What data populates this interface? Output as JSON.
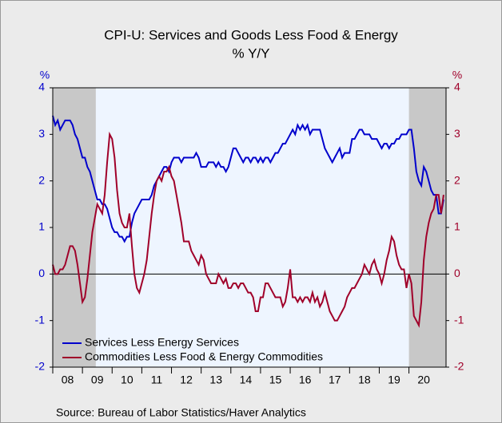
{
  "chart_data": {
    "type": "line",
    "title": "CPI-U: Services and Goods Less Food & Energy",
    "subtitle": "% Y/Y",
    "y_label": "%",
    "y2_label": "%",
    "source": "Source:  Bureau of Labor Statistics/Haver Analytics",
    "xlim": [
      2008,
      2021.25
    ],
    "xticks": [
      {
        "value": 2008,
        "label": "08"
      },
      {
        "value": 2009,
        "label": "09"
      },
      {
        "value": 2010,
        "label": "10"
      },
      {
        "value": 2011,
        "label": "11"
      },
      {
        "value": 2012,
        "label": "12"
      },
      {
        "value": 2013,
        "label": "13"
      },
      {
        "value": 2014,
        "label": "14"
      },
      {
        "value": 2015,
        "label": "15"
      },
      {
        "value": 2016,
        "label": "16"
      },
      {
        "value": 2017,
        "label": "17"
      },
      {
        "value": 2018,
        "label": "18"
      },
      {
        "value": 2019,
        "label": "19"
      },
      {
        "value": 2020,
        "label": "20"
      }
    ],
    "ylim": [
      -2,
      4
    ],
    "yticks": [
      -2,
      -1,
      0,
      1,
      2,
      3,
      4
    ],
    "y2lim": [
      -2,
      4
    ],
    "y2ticks": [
      -2,
      -1,
      0,
      1,
      2,
      3,
      4
    ],
    "recessions": [
      [
        2008,
        2009.45
      ],
      [
        2020,
        2021.25
      ]
    ],
    "x": [
      2008,
      2008.083,
      2008.167,
      2008.25,
      2008.333,
      2008.417,
      2008.5,
      2008.583,
      2008.667,
      2008.75,
      2008.833,
      2008.917,
      2009,
      2009.083,
      2009.167,
      2009.25,
      2009.333,
      2009.417,
      2009.5,
      2009.583,
      2009.667,
      2009.75,
      2009.833,
      2009.917,
      2010,
      2010.083,
      2010.167,
      2010.25,
      2010.333,
      2010.417,
      2010.5,
      2010.583,
      2010.667,
      2010.75,
      2010.833,
      2010.917,
      2011,
      2011.083,
      2011.167,
      2011.25,
      2011.333,
      2011.417,
      2011.5,
      2011.583,
      2011.667,
      2011.75,
      2011.833,
      2011.917,
      2012,
      2012.083,
      2012.167,
      2012.25,
      2012.333,
      2012.417,
      2012.5,
      2012.583,
      2012.667,
      2012.75,
      2012.833,
      2012.917,
      2013,
      2013.083,
      2013.167,
      2013.25,
      2013.333,
      2013.417,
      2013.5,
      2013.583,
      2013.667,
      2013.75,
      2013.833,
      2013.917,
      2014,
      2014.083,
      2014.167,
      2014.25,
      2014.333,
      2014.417,
      2014.5,
      2014.583,
      2014.667,
      2014.75,
      2014.833,
      2014.917,
      2015,
      2015.083,
      2015.167,
      2015.25,
      2015.333,
      2015.417,
      2015.5,
      2015.583,
      2015.667,
      2015.75,
      2015.833,
      2015.917,
      2016,
      2016.083,
      2016.167,
      2016.25,
      2016.333,
      2016.417,
      2016.5,
      2016.583,
      2016.667,
      2016.75,
      2016.833,
      2016.917,
      2017,
      2017.083,
      2017.167,
      2017.25,
      2017.333,
      2017.417,
      2017.5,
      2017.583,
      2017.667,
      2017.75,
      2017.833,
      2017.917,
      2018,
      2018.083,
      2018.167,
      2018.25,
      2018.333,
      2018.417,
      2018.5,
      2018.583,
      2018.667,
      2018.75,
      2018.833,
      2018.917,
      2019,
      2019.083,
      2019.167,
      2019.25,
      2019.333,
      2019.417,
      2019.5,
      2019.583,
      2019.667,
      2019.75,
      2019.833,
      2019.917,
      2020,
      2020.083,
      2020.167,
      2020.25,
      2020.333,
      2020.417,
      2020.5,
      2020.583,
      2020.667,
      2020.75,
      2020.833,
      2020.917,
      2021,
      2021.083,
      2021.167
    ],
    "series": [
      {
        "name": "Services Less Energy Services",
        "color": "#0000cc",
        "axis": "y",
        "values": [
          3.4,
          3.2,
          3.3,
          3.1,
          3.2,
          3.3,
          3.3,
          3.3,
          3.2,
          3.0,
          2.9,
          2.7,
          2.5,
          2.5,
          2.3,
          2.2,
          2.0,
          1.8,
          1.6,
          1.6,
          1.5,
          1.5,
          1.4,
          1.2,
          1.0,
          0.9,
          0.9,
          0.8,
          0.8,
          0.7,
          0.8,
          0.8,
          1.1,
          1.3,
          1.4,
          1.5,
          1.6,
          1.6,
          1.6,
          1.6,
          1.7,
          1.9,
          2.0,
          2.1,
          2.2,
          2.3,
          2.3,
          2.2,
          2.4,
          2.5,
          2.5,
          2.5,
          2.4,
          2.5,
          2.5,
          2.5,
          2.5,
          2.5,
          2.6,
          2.5,
          2.3,
          2.3,
          2.3,
          2.4,
          2.4,
          2.4,
          2.3,
          2.4,
          2.3,
          2.3,
          2.2,
          2.3,
          2.5,
          2.7,
          2.7,
          2.6,
          2.5,
          2.4,
          2.5,
          2.5,
          2.4,
          2.5,
          2.5,
          2.4,
          2.5,
          2.4,
          2.5,
          2.5,
          2.4,
          2.5,
          2.6,
          2.6,
          2.7,
          2.8,
          2.8,
          2.9,
          3.0,
          3.1,
          3.0,
          3.2,
          3.1,
          3.2,
          3.1,
          3.2,
          3.0,
          3.1,
          3.1,
          3.1,
          3.1,
          2.9,
          2.7,
          2.6,
          2.5,
          2.4,
          2.5,
          2.6,
          2.7,
          2.5,
          2.6,
          2.6,
          2.6,
          2.9,
          2.9,
          3.0,
          3.1,
          3.1,
          3.0,
          3.0,
          3.0,
          2.9,
          2.9,
          2.9,
          2.8,
          2.7,
          2.8,
          2.8,
          2.7,
          2.8,
          2.8,
          2.9,
          2.9,
          3.0,
          3.0,
          3.0,
          3.1,
          3.1,
          2.7,
          2.2,
          2.0,
          1.9,
          2.3,
          2.2,
          2.0,
          1.8,
          1.7,
          1.7,
          1.3,
          1.3,
          1.6
        ]
      },
      {
        "name": "Commodities Less Food & Energy Commodities",
        "color": "#a0002a",
        "axis": "y2",
        "values": [
          0.2,
          0.0,
          0.0,
          0.1,
          0.1,
          0.2,
          0.4,
          0.6,
          0.6,
          0.5,
          0.2,
          -0.2,
          -0.6,
          -0.5,
          -0.1,
          0.4,
          0.9,
          1.2,
          1.5,
          1.4,
          1.3,
          1.7,
          2.4,
          3.0,
          2.9,
          2.5,
          1.8,
          1.3,
          1.1,
          1.0,
          1.0,
          1.3,
          0.6,
          0.0,
          -0.3,
          -0.4,
          -0.2,
          0.0,
          0.3,
          0.8,
          1.3,
          1.7,
          2.0,
          2.1,
          2.0,
          2.2,
          2.2,
          2.3,
          2.1,
          2.0,
          1.7,
          1.4,
          1.1,
          0.7,
          0.7,
          0.7,
          0.5,
          0.4,
          0.3,
          0.2,
          0.4,
          0.3,
          0.0,
          -0.1,
          -0.2,
          -0.2,
          -0.2,
          0.0,
          -0.1,
          -0.2,
          -0.1,
          -0.3,
          -0.3,
          -0.2,
          -0.2,
          -0.3,
          -0.2,
          -0.2,
          -0.3,
          -0.4,
          -0.4,
          -0.5,
          -0.8,
          -0.8,
          -0.5,
          -0.5,
          -0.2,
          -0.2,
          -0.3,
          -0.4,
          -0.5,
          -0.5,
          -0.5,
          -0.7,
          -0.6,
          -0.3,
          0.1,
          -0.5,
          -0.5,
          -0.6,
          -0.5,
          -0.6,
          -0.5,
          -0.5,
          -0.6,
          -0.4,
          -0.6,
          -0.5,
          -0.7,
          -0.6,
          -0.4,
          -0.6,
          -0.8,
          -0.9,
          -1.0,
          -1.0,
          -0.9,
          -0.8,
          -0.7,
          -0.5,
          -0.4,
          -0.3,
          -0.3,
          -0.2,
          -0.1,
          0.0,
          0.2,
          0.1,
          0.0,
          0.2,
          0.3,
          0.1,
          0.0,
          -0.2,
          0.0,
          0.3,
          0.5,
          0.8,
          0.7,
          0.4,
          0.2,
          0.1,
          0.1,
          -0.3,
          0.0,
          -0.2,
          -0.9,
          -1.0,
          -1.1,
          -0.6,
          0.3,
          0.8,
          1.1,
          1.3,
          1.4,
          1.7,
          1.7,
          1.3,
          1.7
        ]
      }
    ]
  }
}
